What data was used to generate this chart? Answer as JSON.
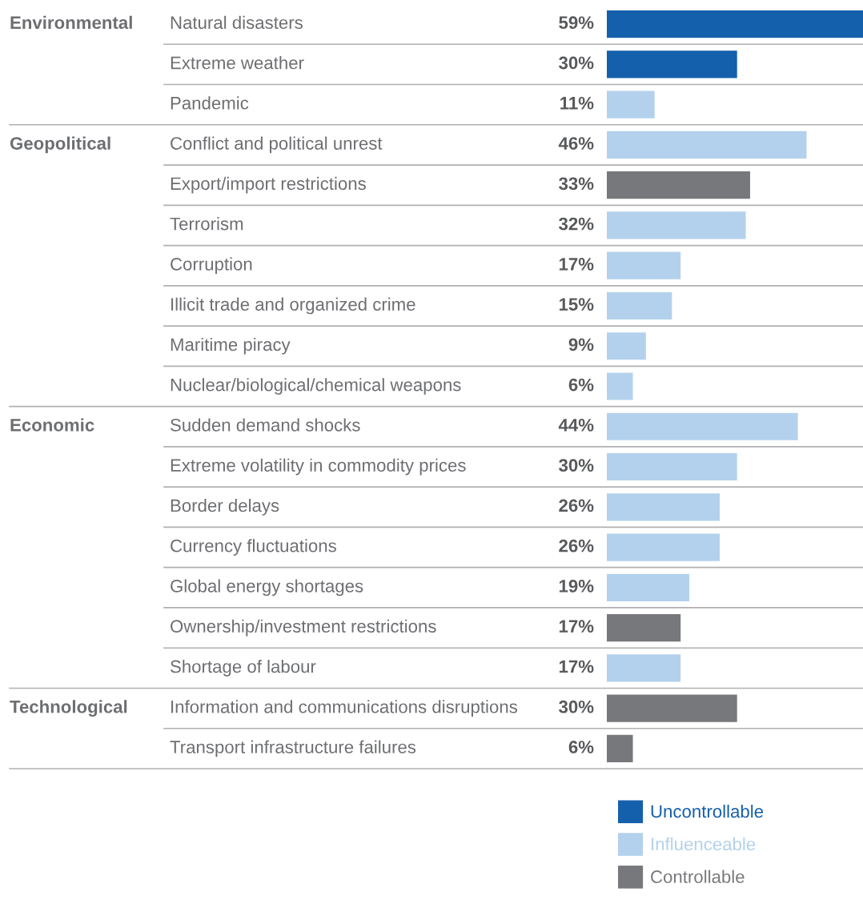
{
  "chart_data": {
    "type": "bar",
    "orientation": "horizontal",
    "categories": [
      "Natural disasters",
      "Extreme weather",
      "Pandemic",
      "Conflict and political unrest",
      "Export/import restrictions",
      "Terrorism",
      "Corruption",
      "Illicit trade and organized crime",
      "Maritime piracy",
      "Nuclear/biological/chemical weapons",
      "Sudden demand shocks",
      "Extreme volatility in commodity prices",
      "Border delays",
      "Currency fluctuations",
      "Global energy shortages",
      "Ownership/investment restrictions",
      "Shortage of labour",
      "Information and communications disruptions",
      "Transport infrastructure failures"
    ],
    "series": [
      {
        "name": "Uncontrollable",
        "color": "#1560ac",
        "values": [
          59,
          30,
          null,
          null,
          null,
          null,
          null,
          null,
          null,
          null,
          null,
          null,
          null,
          null,
          null,
          null,
          null,
          null,
          null
        ],
        "value_labels": [
          "59%",
          "30%",
          null,
          null,
          null,
          null,
          null,
          null,
          null,
          null,
          null,
          null,
          null,
          null,
          null,
          null,
          null,
          null,
          null
        ]
      },
      {
        "name": "Influenceable",
        "color": "#b3d1ec",
        "values": [
          null,
          null,
          11,
          46,
          null,
          32,
          17,
          15,
          9,
          6,
          44,
          30,
          26,
          26,
          19,
          null,
          17,
          null,
          null
        ],
        "value_labels": [
          null,
          null,
          "11%",
          "46%",
          null,
          "32%",
          "17%",
          "15%",
          "9%",
          "6%",
          "44%",
          "30%",
          "26%",
          "26%",
          "19%",
          null,
          "17%",
          null,
          null
        ]
      },
      {
        "name": "Controllable",
        "color": "#77787b",
        "values": [
          null,
          null,
          null,
          null,
          33,
          null,
          null,
          null,
          null,
          null,
          null,
          null,
          null,
          null,
          null,
          17,
          null,
          30,
          6
        ],
        "value_labels": [
          null,
          null,
          null,
          null,
          "33%",
          null,
          null,
          null,
          null,
          null,
          null,
          null,
          null,
          null,
          null,
          "17%",
          null,
          "30%",
          "6%"
        ]
      }
    ],
    "annotations": [
      "Environmental",
      "Geopolitical",
      "Economic",
      "Technological"
    ],
    "legend": "bottom left"
  }
}
